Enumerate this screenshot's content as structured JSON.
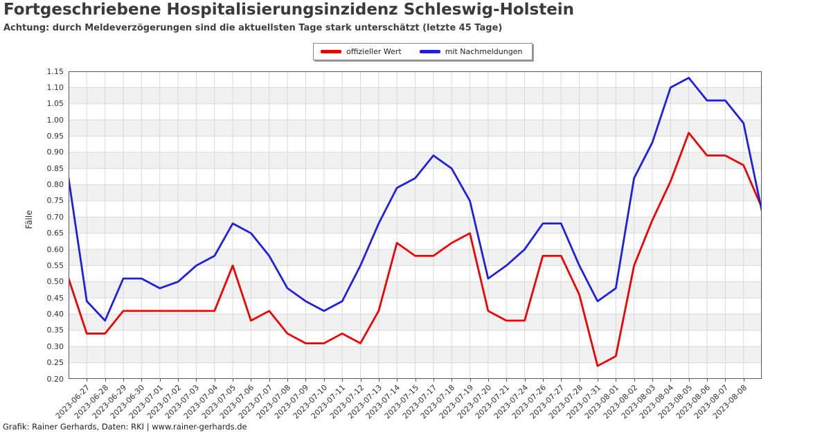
{
  "title": "Fortgeschriebene Hospitalisierungsinzidenz Schleswig-Holstein",
  "subtitle": "Achtung: durch Meldeverzögerungen sind die aktuellsten Tage stark unterschätzt (letzte 45 Tage)",
  "footer": "Grafik: Rainer Gerhards, Daten: RKI | www.rainer-gerhards.de",
  "legend": {
    "items": [
      {
        "label": "offizieller Wert",
        "color": "#ee0000"
      },
      {
        "label": "mit Nachmeldungen",
        "color": "#1f1fdd"
      }
    ]
  },
  "chart_data": {
    "type": "line",
    "title": "Fortgeschriebene Hospitalisierungsinzidenz Schleswig-Holstein",
    "subtitle": "Achtung: durch Meldeverzögerungen sind die aktuellsten Tage stark unterschätzt (letzte 45 Tage)",
    "xlabel": "",
    "ylabel": "Fälle",
    "ylim": [
      0.2,
      1.15
    ],
    "ytick_step": 0.05,
    "yticks": [
      "0.20",
      "0.25",
      "0.30",
      "0.35",
      "0.40",
      "0.45",
      "0.50",
      "0.55",
      "0.60",
      "0.65",
      "0.70",
      "0.75",
      "0.80",
      "0.85",
      "0.90",
      "0.95",
      "1.00",
      "1.05",
      "1.10",
      "1.15"
    ],
    "grid": true,
    "band_color": "#f1f1f1",
    "grid_color": "#d9d9d9",
    "border_color": "#555555",
    "legend_position": "top-center",
    "categories": [
      "",
      "2023-06-27",
      "2023-06-28",
      "2023-06-29",
      "2023-06-30",
      "2023-07-01",
      "2023-07-02",
      "2023-07-03",
      "2023-07-04",
      "2023-07-05",
      "2023-07-06",
      "2023-07-07",
      "2023-07-08",
      "2023-07-09",
      "2023-07-10",
      "2023-07-11",
      "2023-07-12",
      "2023-07-13",
      "2023-07-14",
      "2023-07-15",
      "2023-07-17",
      "2023-07-18",
      "2023-07-19",
      "2023-07-20",
      "2023-07-21",
      "2023-07-24",
      "2023-07-26",
      "2023-07-27",
      "2023-07-28",
      "2023-07-31",
      "2023-08-01",
      "2023-08-02",
      "2023-08-03",
      "2023-08-04",
      "2023-08-05",
      "2023-08-06",
      "2023-08-07",
      "2023-08-08",
      ""
    ],
    "series": [
      {
        "name": "offizieller Wert",
        "color": "#ee0000",
        "values": [
          0.51,
          0.34,
          0.34,
          0.41,
          0.41,
          0.41,
          0.41,
          0.41,
          0.41,
          0.55,
          0.38,
          0.41,
          0.34,
          0.31,
          0.31,
          0.34,
          0.31,
          0.41,
          0.62,
          0.58,
          0.58,
          0.62,
          0.65,
          0.41,
          0.38,
          0.38,
          0.58,
          0.58,
          0.46,
          0.24,
          0.27,
          0.55,
          0.69,
          0.81,
          0.96,
          0.89,
          0.89,
          0.86,
          0.73
        ]
      },
      {
        "name": "mit Nachmeldungen",
        "color": "#1f1fdd",
        "values": [
          0.82,
          0.44,
          0.38,
          0.51,
          0.51,
          0.48,
          0.5,
          0.55,
          0.58,
          0.68,
          0.65,
          0.58,
          0.48,
          0.44,
          0.41,
          0.44,
          0.55,
          0.68,
          0.79,
          0.82,
          0.89,
          0.85,
          0.75,
          0.51,
          0.55,
          0.6,
          0.68,
          0.68,
          0.55,
          0.44,
          0.48,
          0.82,
          0.93,
          1.1,
          1.13,
          1.06,
          1.06,
          0.99,
          0.72
        ]
      }
    ]
  }
}
